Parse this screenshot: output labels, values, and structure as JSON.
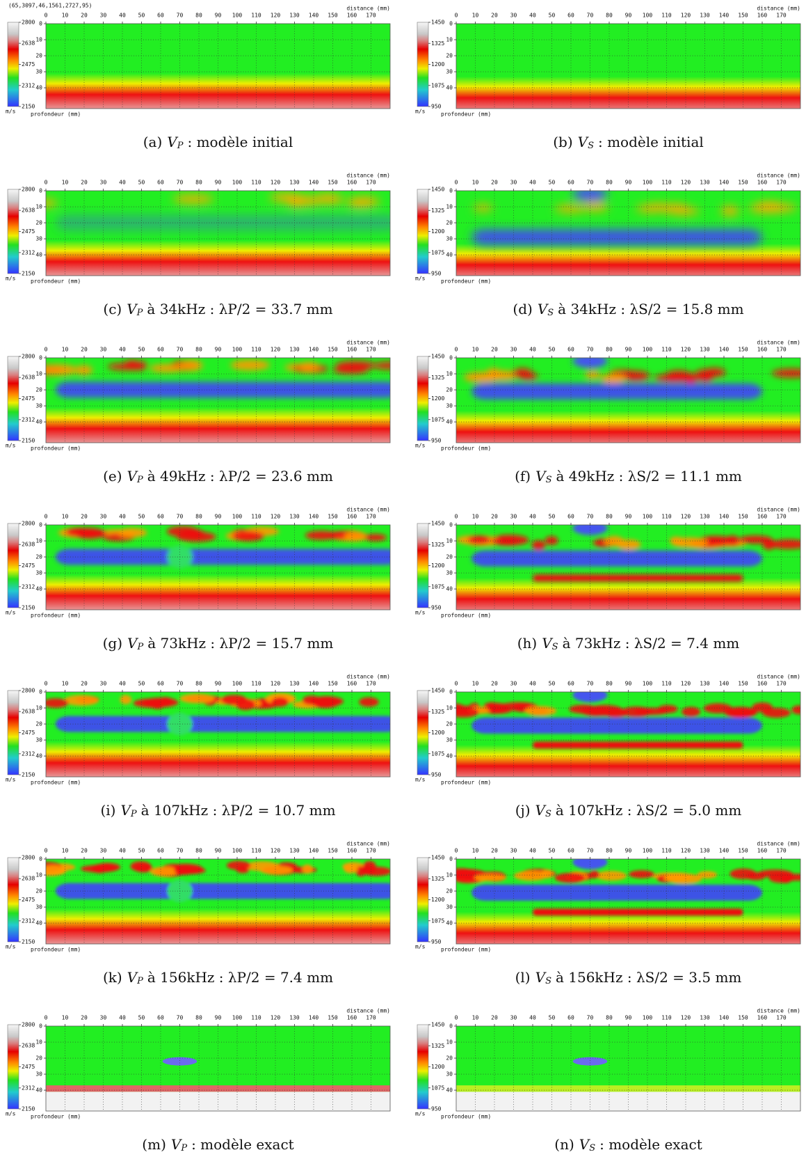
{
  "corner_readout": "(65,3097,46,1561,2727,95)",
  "axes": {
    "x_label": "distance (mm)",
    "y_label": "profondeur (mm)",
    "unit": "m/s",
    "xlim": [
      0,
      180
    ],
    "ylim": [
      0,
      53
    ],
    "xticks": [
      0,
      10,
      20,
      30,
      40,
      50,
      60,
      70,
      80,
      90,
      100,
      110,
      120,
      130,
      140,
      150,
      160,
      170
    ],
    "yticks": [
      0,
      10,
      20,
      30,
      40
    ]
  },
  "colorbars": [
    {
      "lim": [
        2150,
        2800
      ],
      "ticks": [
        2800,
        2638,
        2475,
        2312,
        2150
      ]
    },
    {
      "lim": [
        950,
        1450
      ],
      "ticks": [
        1450,
        1325,
        1200,
        1075,
        950
      ]
    }
  ],
  "panels": [
    {
      "label": "(a)",
      "symbol": "V",
      "subscript": "P",
      "text": ": modèle initial"
    },
    {
      "label": "(b)",
      "symbol": "V",
      "subscript": "S",
      "text": ": modèle initial"
    },
    {
      "label": "(c)",
      "symbol": "V",
      "subscript": "P",
      "text": "à 34kHz : λP/2 = 33.7 mm"
    },
    {
      "label": "(d)",
      "symbol": "V",
      "subscript": "S",
      "text": "à 34kHz : λS/2 = 15.8 mm"
    },
    {
      "label": "(e)",
      "symbol": "V",
      "subscript": "P",
      "text": "à 49kHz : λP/2 = 23.6 mm"
    },
    {
      "label": "(f)",
      "symbol": "V",
      "subscript": "S",
      "text": "à 49kHz : λS/2 = 11.1 mm"
    },
    {
      "label": "(g)",
      "symbol": "V",
      "subscript": "P",
      "text": "à 73kHz : λP/2 = 15.7 mm"
    },
    {
      "label": "(h)",
      "symbol": "V",
      "subscript": "S",
      "text": "à 73kHz : λS/2 = 7.4 mm"
    },
    {
      "label": "(i)",
      "symbol": "V",
      "subscript": "P",
      "text": "à 107kHz : λP/2 = 10.7 mm"
    },
    {
      "label": "(j)",
      "symbol": "V",
      "subscript": "S",
      "text": "à 107kHz : λS/2 = 5.0 mm"
    },
    {
      "label": "(k)",
      "symbol": "V",
      "subscript": "P",
      "text": "à 156kHz : λP/2 = 7.4 mm"
    },
    {
      "label": "(l)",
      "symbol": "V",
      "subscript": "S",
      "text": "à 156kHz : λS/2 = 3.5 mm"
    },
    {
      "label": "(m)",
      "symbol": "V",
      "subscript": "P",
      "text": ": modèle exact"
    },
    {
      "label": "(n)",
      "symbol": "V",
      "subscript": "S",
      "text": ": modèle exact"
    }
  ]
}
